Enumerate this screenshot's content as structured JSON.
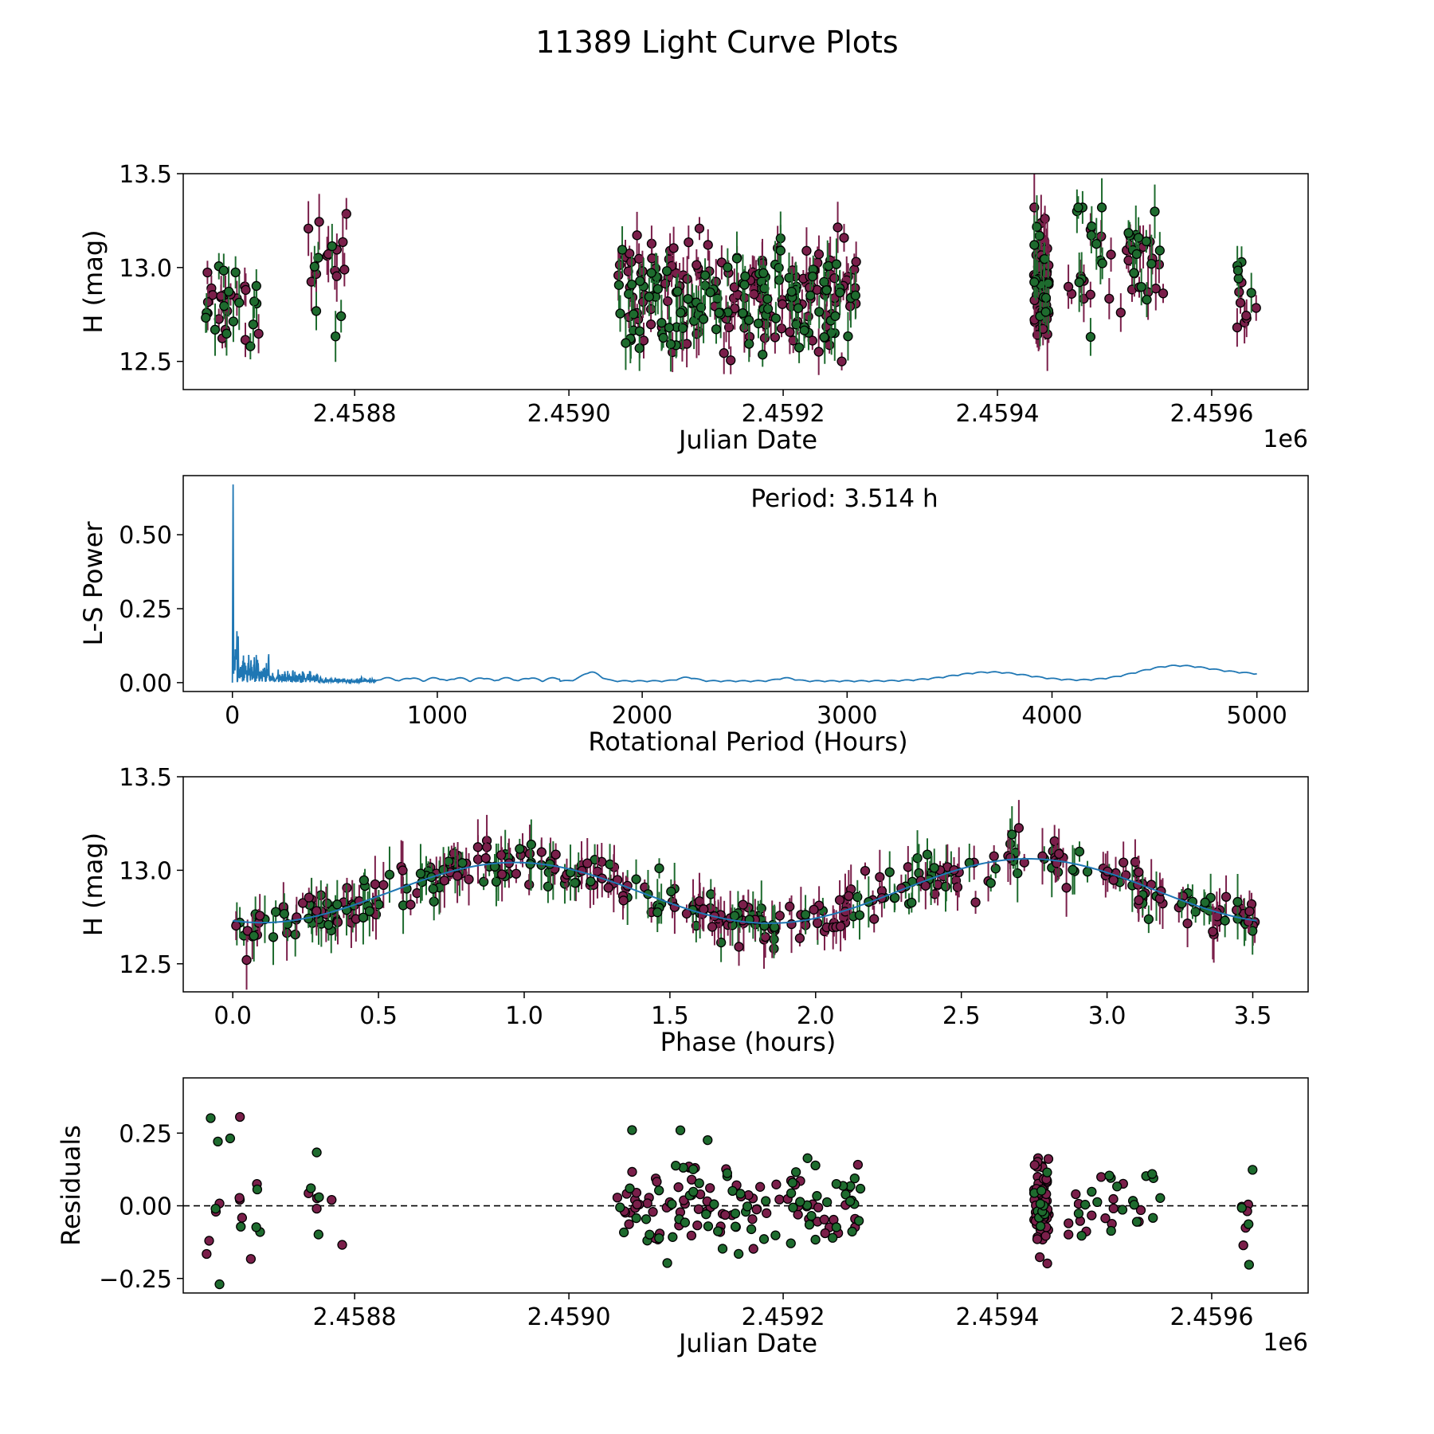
{
  "figure_title": "11389 Light Curve Plots",
  "colors": {
    "filter_r": "#7a1f4a",
    "filter_g": "#1e6b2e",
    "fit_line": "#1f77b4",
    "zero_line": "#000000"
  },
  "chart_data": [
    {
      "type": "scatter",
      "panel": "light-curve",
      "xlabel": "Julian Date",
      "ylabel": "H (mag)",
      "x_offset_label": "1e6",
      "xlim": [
        2.45864,
        2.45969
      ],
      "ylim": [
        12.35,
        13.5
      ],
      "xticks": [
        2.4588,
        2.459,
        2.4592,
        2.4594,
        2.4596
      ],
      "xtick_labels": [
        "2.4588",
        "2.4590",
        "2.4592",
        "2.4594",
        "2.4596"
      ],
      "yticks": [
        12.5,
        13.0,
        13.5
      ],
      "ytick_labels": [
        "12.5",
        "13.0",
        "13.5"
      ],
      "groups": [
        {
          "color_key": "filter_r",
          "x_range": [
            2.458661,
            2.458712
          ],
          "n": 18,
          "seed": 11,
          "y_mean": 12.84,
          "y_sd": 0.12,
          "err": [
            0.05,
            0.12
          ]
        },
        {
          "color_key": "filter_g",
          "x_range": [
            2.458661,
            2.458712
          ],
          "n": 16,
          "seed": 12,
          "y_mean": 12.8,
          "y_sd": 0.15,
          "err": [
            0.06,
            0.15
          ]
        },
        {
          "color_key": "filter_r",
          "x_range": [
            2.458755,
            2.458793
          ],
          "n": 12,
          "seed": 13,
          "y_mean": 13.0,
          "y_sd": 0.15,
          "err": [
            0.08,
            0.2
          ]
        },
        {
          "color_key": "filter_g",
          "x_range": [
            2.458755,
            2.458793
          ],
          "n": 6,
          "seed": 14,
          "y_mean": 12.95,
          "y_sd": 0.2,
          "err": [
            0.08,
            0.2
          ]
        },
        {
          "color_key": "filter_r",
          "x_range": [
            2.459045,
            2.459273
          ],
          "n": 150,
          "seed": 15,
          "y_mean": 12.85,
          "y_sd": 0.15,
          "err": [
            0.04,
            0.14
          ]
        },
        {
          "color_key": "filter_g",
          "x_range": [
            2.459045,
            2.459273
          ],
          "n": 110,
          "seed": 16,
          "y_mean": 12.85,
          "y_sd": 0.15,
          "err": [
            0.05,
            0.16
          ]
        },
        {
          "color_key": "filter_r",
          "x_range": [
            2.459434,
            2.459448
          ],
          "n": 60,
          "seed": 17,
          "y_mean": 12.9,
          "y_sd": 0.18,
          "err": [
            0.06,
            0.2
          ]
        },
        {
          "color_key": "filter_g",
          "x_range": [
            2.459434,
            2.459448
          ],
          "n": 15,
          "seed": 18,
          "y_mean": 12.9,
          "y_sd": 0.15,
          "err": [
            0.06,
            0.18
          ]
        },
        {
          "color_key": "filter_r",
          "x_range": [
            2.459465,
            2.459555
          ],
          "n": 25,
          "seed": 19,
          "y_mean": 12.95,
          "y_sd": 0.15,
          "err": [
            0.05,
            0.15
          ]
        },
        {
          "color_key": "filter_g",
          "x_range": [
            2.459465,
            2.459555
          ],
          "n": 25,
          "seed": 20,
          "y_mean": 13.0,
          "y_sd": 0.17,
          "err": [
            0.06,
            0.16
          ]
        },
        {
          "color_key": "filter_r",
          "x_range": [
            2.459623,
            2.459643
          ],
          "n": 8,
          "seed": 21,
          "y_mean": 12.85,
          "y_sd": 0.12,
          "err": [
            0.05,
            0.12
          ]
        },
        {
          "color_key": "filter_g",
          "x_range": [
            2.459623,
            2.459643
          ],
          "n": 5,
          "seed": 22,
          "y_mean": 12.85,
          "y_sd": 0.15,
          "err": [
            0.05,
            0.12
          ]
        }
      ]
    },
    {
      "type": "line",
      "panel": "periodogram",
      "xlabel": "Rotational Period (Hours)",
      "ylabel": "L-S Power",
      "annotation": "Period: 3.514 h",
      "xlim": [
        -240,
        5250
      ],
      "ylim": [
        -0.03,
        0.7
      ],
      "xticks": [
        0,
        1000,
        2000,
        3000,
        4000,
        5000
      ],
      "xtick_labels": [
        "0",
        "1000",
        "2000",
        "3000",
        "4000",
        "5000"
      ],
      "yticks": [
        0.0,
        0.25,
        0.5
      ],
      "ytick_labels": [
        "0.00",
        "0.25",
        "0.50"
      ],
      "peak": {
        "x": 3.514,
        "y": 0.67
      },
      "x_max": 5000,
      "bumps": [
        {
          "x": 1750,
          "y": 0.03
        },
        {
          "x": 2220,
          "y": 0.012
        },
        {
          "x": 2700,
          "y": 0.01
        },
        {
          "x": 3700,
          "y": 0.03
        },
        {
          "x": 4600,
          "y": 0.05
        },
        {
          "x": 5000,
          "y": 0.02
        }
      ]
    },
    {
      "type": "scatter",
      "panel": "phased-light-curve",
      "xlabel": "Phase (hours)",
      "ylabel": "H (mag)",
      "xlim": [
        -0.17,
        3.69
      ],
      "ylim": [
        12.35,
        13.5
      ],
      "xticks": [
        0.0,
        0.5,
        1.0,
        1.5,
        2.0,
        2.5,
        3.0,
        3.5
      ],
      "xtick_labels": [
        "0.0",
        "0.5",
        "1.0",
        "1.5",
        "2.0",
        "2.5",
        "3.0",
        "3.5"
      ],
      "yticks": [
        12.5,
        13.0,
        13.5
      ],
      "ytick_labels": [
        "12.5",
        "13.0",
        "13.5"
      ],
      "period_hours": 3.514,
      "fit": {
        "mean": 12.885,
        "amplitude": 0.17,
        "peak1_phase": 0.97,
        "peak2_phase": 2.82
      },
      "n_points": 400,
      "seed": 31
    },
    {
      "type": "scatter",
      "panel": "residuals",
      "xlabel": "Julian Date",
      "ylabel": "Residuals",
      "x_offset_label": "1e6",
      "xlim": [
        2.45864,
        2.45969
      ],
      "ylim": [
        -0.3,
        0.44
      ],
      "xticks": [
        2.4588,
        2.459,
        2.4592,
        2.4594,
        2.4596
      ],
      "xtick_labels": [
        "2.4588",
        "2.4590",
        "2.4592",
        "2.4594",
        "2.4596"
      ],
      "yticks": [
        -0.25,
        0.0,
        0.25
      ],
      "ytick_labels": [
        "−0.25",
        "0.00",
        "0.25"
      ],
      "zero_line": 0,
      "groups": [
        {
          "color_key": "filter_r",
          "x_range": [
            2.458661,
            2.458712
          ],
          "n": 10,
          "seed": 41,
          "sd": 0.14
        },
        {
          "color_key": "filter_g",
          "x_range": [
            2.458661,
            2.458712
          ],
          "n": 9,
          "seed": 42,
          "sd": 0.16
        },
        {
          "color_key": "filter_r",
          "x_range": [
            2.458755,
            2.458793
          ],
          "n": 5,
          "seed": 43,
          "sd": 0.07
        },
        {
          "color_key": "filter_g",
          "x_range": [
            2.458755,
            2.458793
          ],
          "n": 4,
          "seed": 44,
          "sd": 0.12
        },
        {
          "color_key": "filter_r",
          "x_range": [
            2.459045,
            2.459273
          ],
          "n": 80,
          "seed": 45,
          "sd": 0.07
        },
        {
          "color_key": "filter_g",
          "x_range": [
            2.459045,
            2.459273
          ],
          "n": 70,
          "seed": 46,
          "sd": 0.09
        },
        {
          "color_key": "filter_r",
          "x_range": [
            2.459434,
            2.459448
          ],
          "n": 60,
          "seed": 47,
          "sd": 0.09
        },
        {
          "color_key": "filter_g",
          "x_range": [
            2.459434,
            2.459448
          ],
          "n": 10,
          "seed": 48,
          "sd": 0.05
        },
        {
          "color_key": "filter_r",
          "x_range": [
            2.459465,
            2.459555
          ],
          "n": 15,
          "seed": 49,
          "sd": 0.06
        },
        {
          "color_key": "filter_g",
          "x_range": [
            2.459465,
            2.459555
          ],
          "n": 18,
          "seed": 50,
          "sd": 0.08
        },
        {
          "color_key": "filter_r",
          "x_range": [
            2.459623,
            2.459643
          ],
          "n": 5,
          "seed": 51,
          "sd": 0.1
        },
        {
          "color_key": "filter_g",
          "x_range": [
            2.459623,
            2.459643
          ],
          "n": 4,
          "seed": 52,
          "sd": 0.08
        }
      ]
    }
  ]
}
